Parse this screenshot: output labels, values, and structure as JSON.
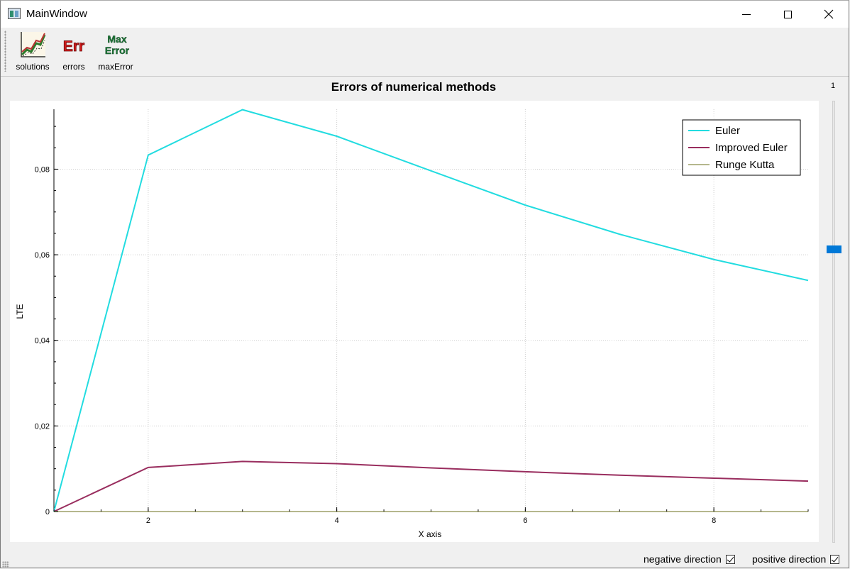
{
  "window": {
    "title": "MainWindow"
  },
  "toolbar": {
    "items": [
      {
        "label": "solutions",
        "icon": "solutions-chart-icon"
      },
      {
        "label": "errors",
        "icon": "errors-icon",
        "icon_text": "Err"
      },
      {
        "label": "maxError",
        "icon": "max-error-icon",
        "icon_text_1": "Max",
        "icon_text_2": "Error"
      }
    ]
  },
  "chart_data": {
    "type": "line",
    "title": "Errors of numerical methods",
    "xlabel": "X axis",
    "ylabel": "LTE",
    "xlim": [
      1,
      9
    ],
    "ylim": [
      0,
      0.094
    ],
    "x_ticks": [
      2,
      4,
      6,
      8
    ],
    "x_tick_labels": [
      "2",
      "4",
      "6",
      "8"
    ],
    "y_ticks": [
      0,
      0.02,
      0.04,
      0.06,
      0.08
    ],
    "y_tick_labels": [
      "0",
      "0,02",
      "0,04",
      "0,06",
      "0,08"
    ],
    "grid": true,
    "legend_position": "top-right",
    "x": [
      1,
      2,
      3,
      4,
      5,
      6,
      7,
      8,
      9
    ],
    "series": [
      {
        "name": "Euler",
        "color": "#22dce0",
        "values": [
          0,
          0.0833,
          0.0939,
          0.0877,
          0.0796,
          0.0716,
          0.0648,
          0.0589,
          0.054
        ]
      },
      {
        "name": "Improved Euler",
        "color": "#992d5e",
        "values": [
          0,
          0.0103,
          0.0117,
          0.0112,
          0.0102,
          0.0093,
          0.0085,
          0.0078,
          0.0071
        ]
      },
      {
        "name": "Runge Kutta",
        "color": "#b5b78d",
        "values": [
          0,
          0,
          0,
          0,
          0,
          0,
          0,
          0,
          0
        ]
      }
    ]
  },
  "slider": {
    "value": "1",
    "level": 0.62
  },
  "footer": {
    "negative_label": "negative direction",
    "negative_checked": true,
    "positive_label": "positive direction",
    "positive_checked": true
  }
}
